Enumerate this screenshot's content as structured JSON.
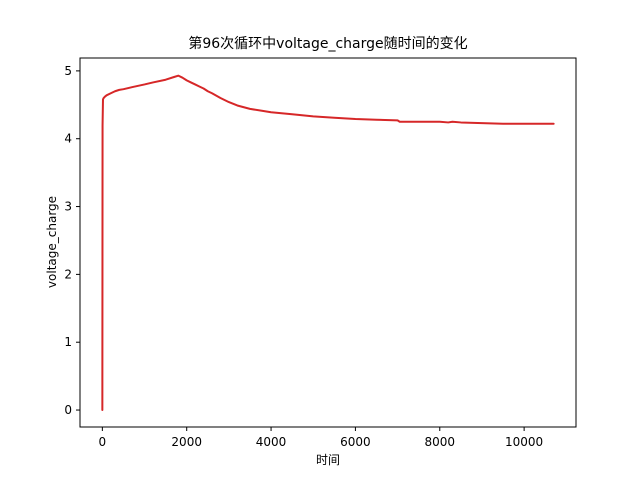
{
  "chart_data": {
    "type": "line",
    "title": "第96次循环中voltage_charge随时间的变化",
    "xlabel": "时间",
    "ylabel": "voltage_charge",
    "xlim": [
      -530,
      11230
    ],
    "ylim": [
      -0.25,
      5.19
    ],
    "xticks": [
      0,
      2000,
      4000,
      6000,
      8000,
      10000
    ],
    "yticks": [
      0,
      1,
      2,
      3,
      4,
      5
    ],
    "grid": false,
    "series": [
      {
        "color": "#d62728",
        "x": [
          0,
          5,
          15,
          30,
          60,
          100,
          200,
          300,
          400,
          500,
          700,
          1000,
          1200,
          1500,
          1700,
          1800,
          1900,
          2000,
          2100,
          2200,
          2300,
          2400,
          2500,
          2600,
          2800,
          3000,
          3200,
          3500,
          3800,
          4000,
          4500,
          5000,
          5500,
          6000,
          6500,
          7000,
          7050,
          7500,
          8000,
          8200,
          8300,
          8500,
          9000,
          9500,
          10000,
          10500,
          10700
        ],
        "y": [
          0.0,
          4.2,
          4.58,
          4.6,
          4.62,
          4.64,
          4.67,
          4.7,
          4.72,
          4.73,
          4.76,
          4.8,
          4.83,
          4.87,
          4.91,
          4.93,
          4.9,
          4.86,
          4.83,
          4.8,
          4.77,
          4.74,
          4.7,
          4.67,
          4.6,
          4.54,
          4.49,
          4.44,
          4.41,
          4.39,
          4.36,
          4.33,
          4.31,
          4.29,
          4.28,
          4.27,
          4.25,
          4.25,
          4.25,
          4.24,
          4.25,
          4.24,
          4.23,
          4.22,
          4.22,
          4.22,
          4.22
        ]
      }
    ]
  }
}
